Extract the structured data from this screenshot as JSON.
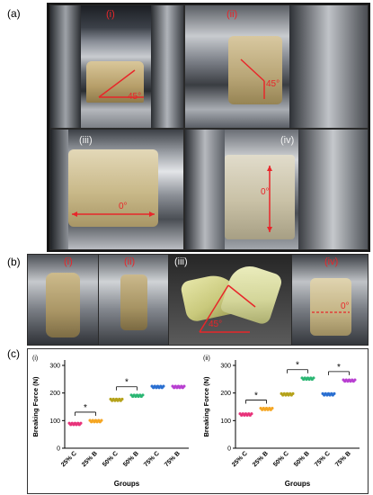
{
  "panel_a": {
    "letter": "(a)",
    "photos": [
      {
        "label": "(i)",
        "angle": "45°"
      },
      {
        "label": "(ii)",
        "angle": "45°"
      },
      {
        "label": "(iii)",
        "angle": "0°"
      },
      {
        "label": "(iv)",
        "angle": "0°"
      }
    ]
  },
  "panel_b": {
    "letter": "(b)",
    "photos": [
      {
        "label": "(i)",
        "angle": ""
      },
      {
        "label": "(ii)",
        "angle": ""
      },
      {
        "label": "(iii)",
        "angle": "45°"
      },
      {
        "label": "(iv)",
        "angle": "0°"
      }
    ]
  },
  "panel_c": {
    "letter": "(c)"
  },
  "chart_data": [
    {
      "type": "scatter",
      "panel_label": "(i)",
      "xlabel": "Groups",
      "ylabel": "Breaking Force (N)",
      "categories": [
        "25% C",
        "25% B",
        "50% C",
        "50% B",
        "75% C",
        "75% B"
      ],
      "ylim": [
        0,
        300
      ],
      "yticks": [
        0,
        100,
        200,
        300
      ],
      "values": [
        88,
        98,
        175,
        190,
        222,
        222
      ],
      "colors": [
        "#e8327a",
        "#f5a623",
        "#b5a21a",
        "#2bb673",
        "#2a6fd1",
        "#b83fd1"
      ],
      "significance": [
        {
          "from": 0,
          "to": 1,
          "label": "*"
        },
        {
          "from": 2,
          "to": 3,
          "label": "*"
        }
      ]
    },
    {
      "type": "scatter",
      "panel_label": "(ii)",
      "xlabel": "Groups",
      "ylabel": "Breaking Force (N)",
      "categories": [
        "25% C",
        "25% B",
        "50% C",
        "50% B",
        "75% C",
        "75% B"
      ],
      "ylim": [
        0,
        300
      ],
      "yticks": [
        0,
        100,
        200,
        300
      ],
      "values": [
        122,
        142,
        195,
        252,
        195,
        245
      ],
      "colors": [
        "#e8327a",
        "#f5a623",
        "#b5a21a",
        "#2bb673",
        "#2a6fd1",
        "#b83fd1"
      ],
      "significance": [
        {
          "from": 0,
          "to": 1,
          "label": "*"
        },
        {
          "from": 2,
          "to": 3,
          "label": "*"
        },
        {
          "from": 4,
          "to": 5,
          "label": "*"
        }
      ]
    }
  ]
}
